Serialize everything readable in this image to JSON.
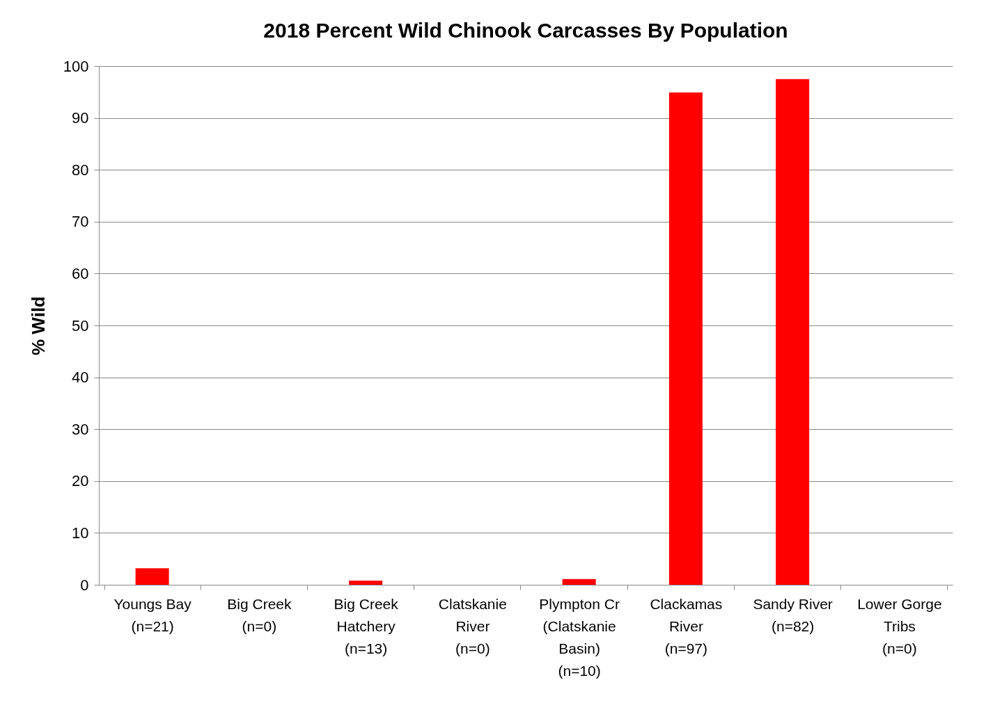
{
  "chart_data": {
    "type": "bar",
    "title": "2018 Percent Wild Chinook Carcasses By Population",
    "ylabel": "% Wild",
    "categories": [
      "Youngs Bay (n=21)",
      "Big Creek (n=0)",
      "Big Creek Hatchery (n=13)",
      "Clatskanie River (n=0)",
      "Plympton Cr (Clatskanie Basin) (n=10)",
      "Clackamas River (n=97)",
      "Sandy River (n=82)",
      "Lower Gorge Tribs (n=0)"
    ],
    "values": [
      3.2,
      0,
      0.8,
      0,
      1.1,
      94.9,
      97.5,
      0
    ],
    "color": "#ff0000",
    "ylim": [
      0,
      100
    ],
    "yticks": [
      0,
      10,
      20,
      30,
      40,
      50,
      60,
      70,
      80,
      90,
      100
    ],
    "grid": "y"
  }
}
